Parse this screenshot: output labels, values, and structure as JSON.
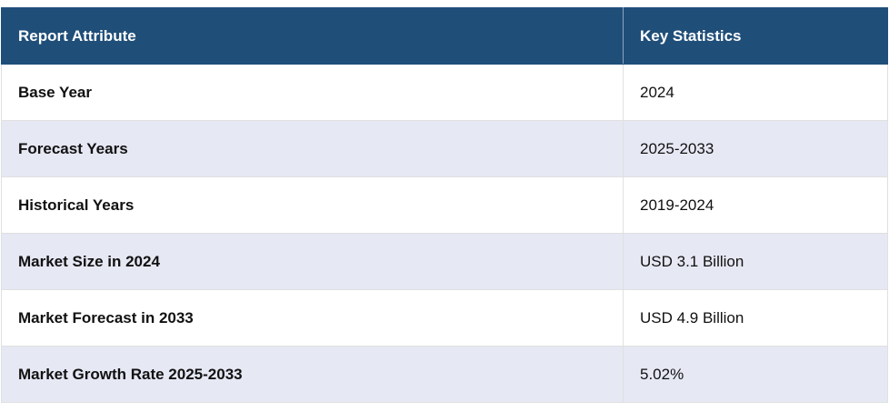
{
  "table": {
    "header": [
      "Report Attribute",
      "Key Statistics"
    ],
    "rows": [
      [
        "Base Year",
        "2024"
      ],
      [
        "Forecast Years",
        "2025-2033"
      ],
      [
        "Historical Years",
        "2019-2024"
      ],
      [
        "Market Size in 2024",
        "USD 3.1 Billion"
      ],
      [
        "Market Forecast in 2033",
        "USD 4.9 Billion"
      ],
      [
        "Market Growth Rate 2025-2033",
        "5.02%"
      ]
    ]
  }
}
